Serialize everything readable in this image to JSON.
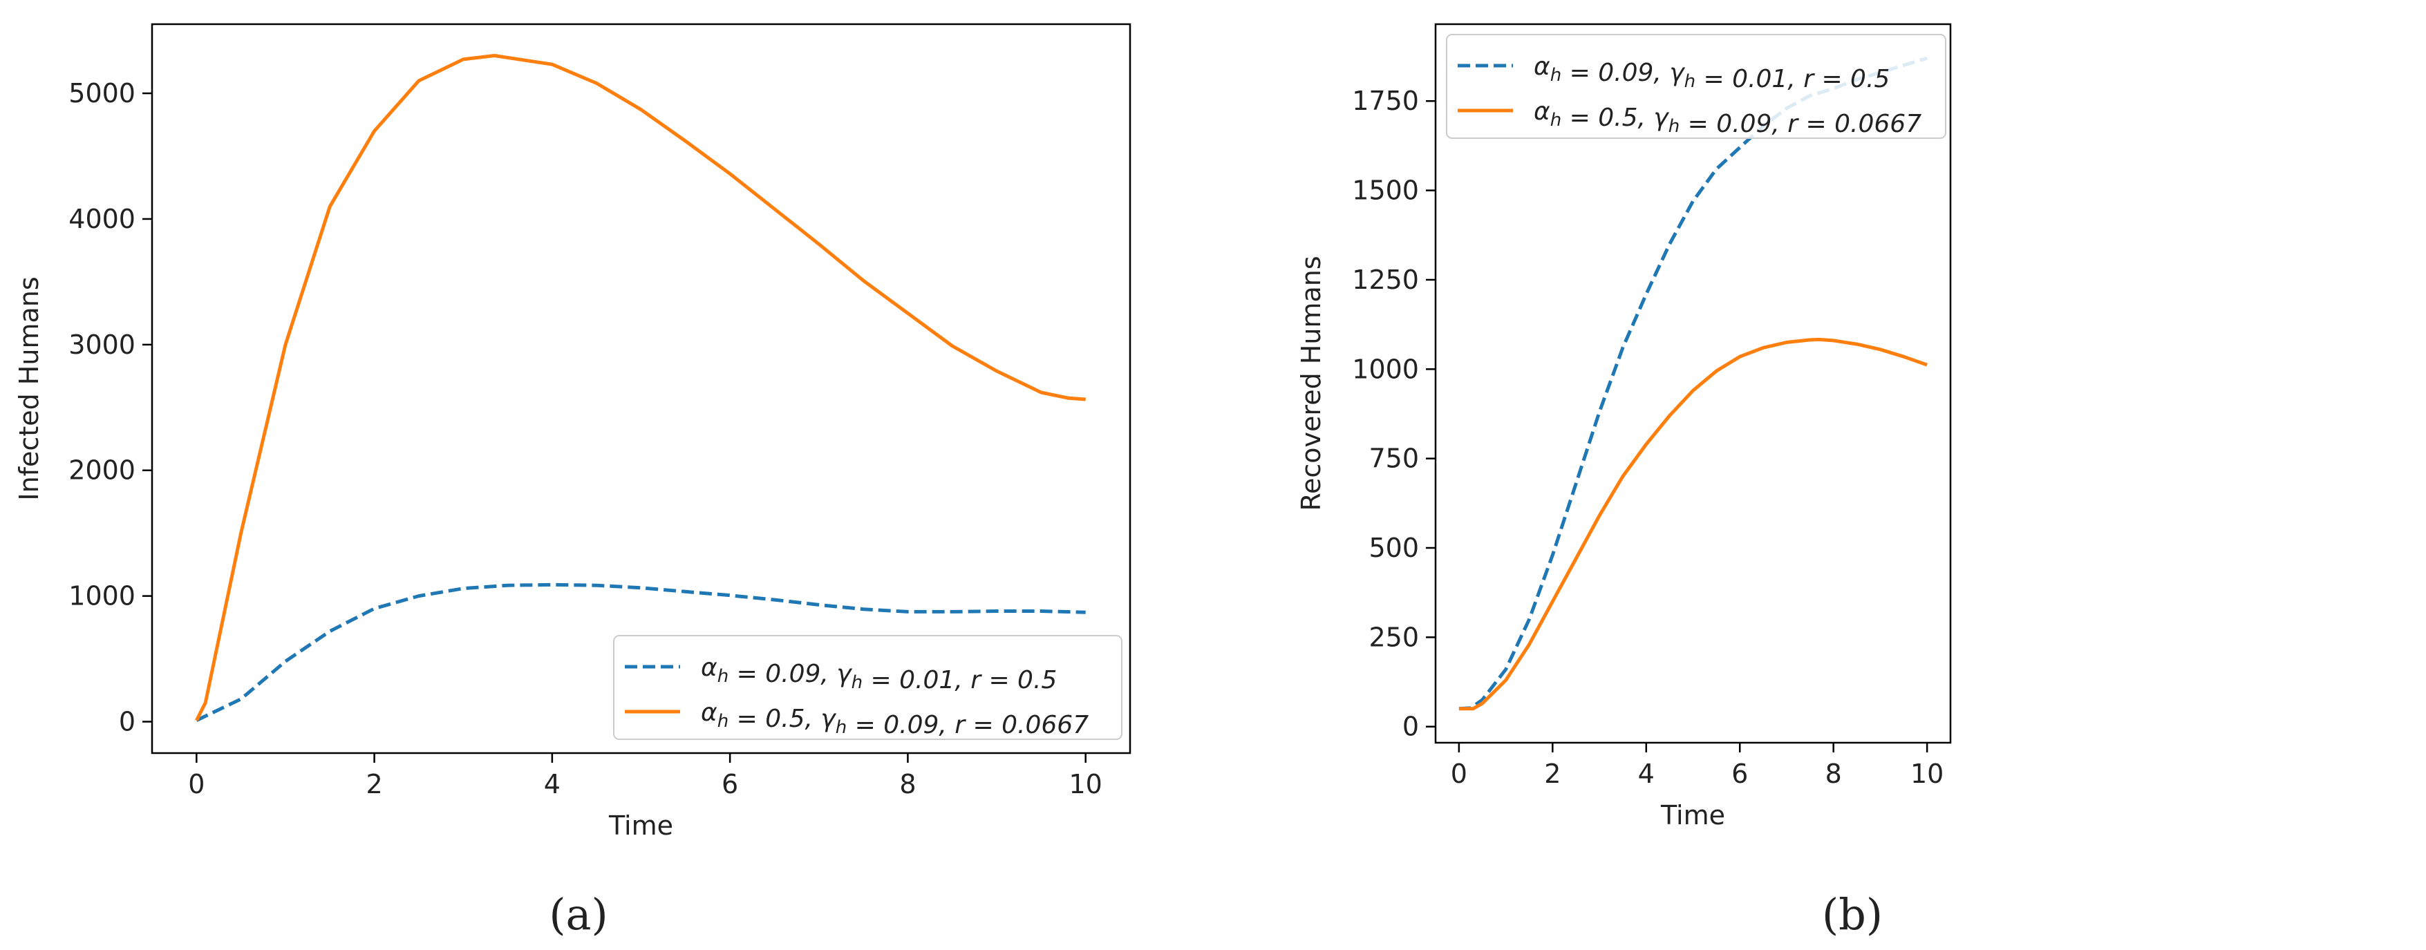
{
  "chart_data": [
    {
      "type": "line",
      "panel_label": "(a)",
      "xlabel": "Time",
      "ylabel": "Infected Humans",
      "xlim": [
        -0.5,
        10.5
      ],
      "ylim": [
        -250,
        5550
      ],
      "xticks": [
        0,
        2,
        4,
        6,
        8,
        10
      ],
      "yticks": [
        0,
        1000,
        2000,
        3000,
        4000,
        5000
      ],
      "legend_position": "lower-right",
      "series": [
        {
          "name": "α_h = 0.09, γ_h = 0.01, r = 0.5",
          "color": "#1f77b4",
          "dash": "dashed",
          "x": [
            0,
            0.5,
            1,
            1.5,
            2,
            2.5,
            3,
            3.5,
            4,
            4.5,
            5,
            5.5,
            6,
            6.5,
            7,
            7.5,
            8,
            8.5,
            9,
            9.5,
            10
          ],
          "y": [
            10,
            180,
            480,
            720,
            900,
            1000,
            1060,
            1085,
            1090,
            1085,
            1065,
            1035,
            1005,
            970,
            930,
            895,
            875,
            875,
            880,
            880,
            870
          ]
        },
        {
          "name": "α_h = 0.5, γ_h = 0.09, r = 0.0667",
          "color": "#ff7f0e",
          "dash": "solid",
          "x": [
            0,
            0.1,
            0.5,
            1,
            1.5,
            2,
            2.5,
            3,
            3.35,
            4,
            4.5,
            5,
            5.5,
            6,
            6.5,
            7,
            7.5,
            8,
            8.5,
            9,
            9.5,
            9.8,
            10
          ],
          "y": [
            10,
            150,
            1500,
            3000,
            4100,
            4700,
            5100,
            5270,
            5300,
            5230,
            5080,
            4870,
            4620,
            4360,
            4080,
            3800,
            3510,
            3250,
            2990,
            2790,
            2620,
            2575,
            2565
          ]
        }
      ]
    },
    {
      "type": "line",
      "panel_label": "(b)",
      "xlabel": "Time",
      "ylabel": "Recovered Humans",
      "xlim": [
        -0.5,
        10.5
      ],
      "ylim": [
        -45,
        1965
      ],
      "xticks": [
        0,
        2,
        4,
        6,
        8,
        10
      ],
      "yticks": [
        0,
        250,
        500,
        750,
        1000,
        1250,
        1500,
        1750
      ],
      "legend_position": "top-left",
      "series": [
        {
          "name": "α_h = 0.09, γ_h = 0.01, r = 0.5",
          "color": "#1f77b4",
          "dash": "dashed",
          "x": [
            0,
            0.25,
            0.5,
            1,
            1.5,
            2,
            2.5,
            3,
            3.5,
            4,
            4.5,
            5,
            5.5,
            6,
            6.5,
            7,
            7.5,
            8,
            8.5,
            9,
            9.5,
            10
          ],
          "y": [
            50,
            52,
            75,
            160,
            300,
            480,
            680,
            880,
            1060,
            1210,
            1350,
            1470,
            1560,
            1620,
            1680,
            1730,
            1765,
            1785,
            1810,
            1830,
            1850,
            1870
          ]
        },
        {
          "name": "α_h = 0.5, γ_h = 0.09, r = 0.0667",
          "color": "#ff7f0e",
          "dash": "solid",
          "x": [
            0,
            0.3,
            0.5,
            1,
            1.5,
            2,
            2.5,
            3,
            3.5,
            4,
            4.5,
            5,
            5.5,
            6,
            6.5,
            7,
            7.5,
            7.7,
            8,
            8.5,
            9,
            9.5,
            10
          ],
          "y": [
            50,
            50,
            65,
            130,
            230,
            350,
            470,
            590,
            700,
            790,
            870,
            940,
            995,
            1035,
            1060,
            1075,
            1082,
            1083,
            1080,
            1070,
            1055,
            1035,
            1012
          ]
        }
      ]
    }
  ]
}
